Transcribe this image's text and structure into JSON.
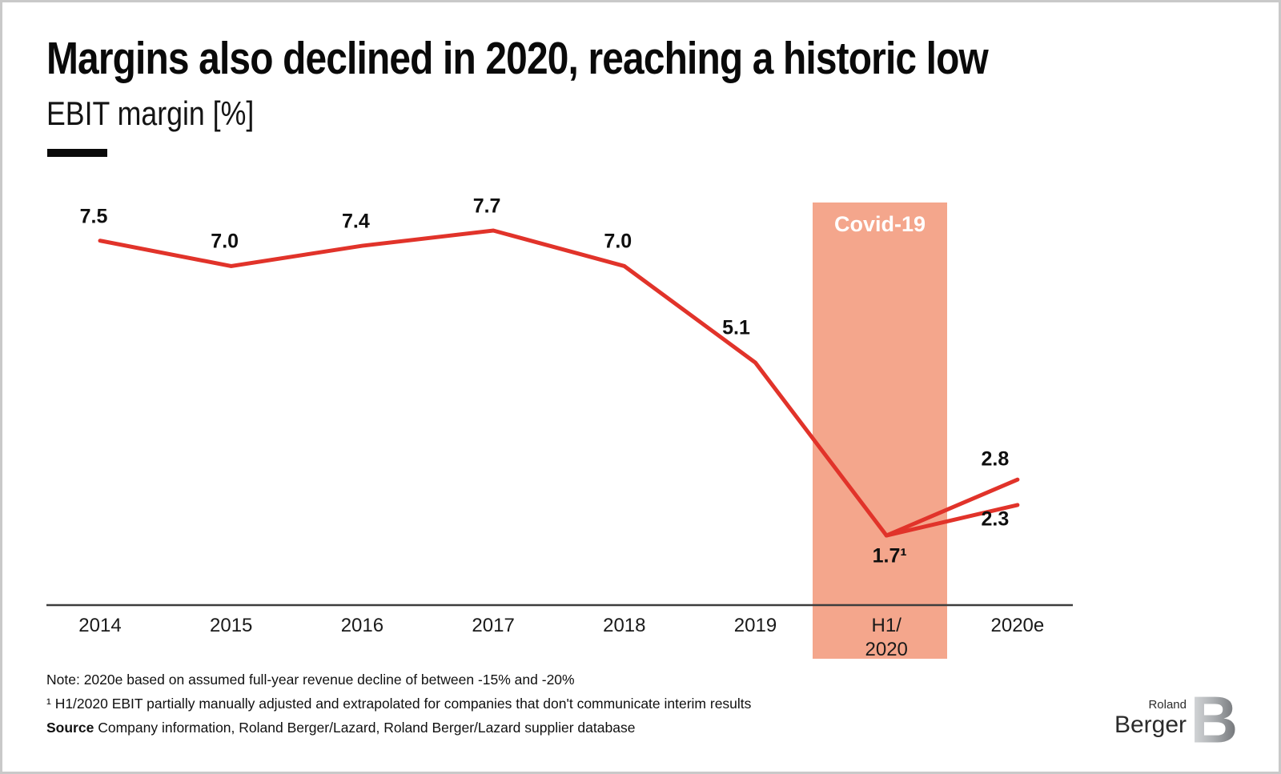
{
  "slide": {
    "title": "Margins also declined in 2020, reaching a historic low",
    "subtitle": "EBIT margin [%]"
  },
  "chart_data": {
    "type": "line",
    "title": "EBIT margin [%]",
    "xlabel": "",
    "ylabel": "EBIT margin [%]",
    "ylim": [
      0,
      9
    ],
    "grid": false,
    "legend": "none",
    "categories": [
      "2014",
      "2015",
      "2016",
      "2017",
      "2018",
      "2019",
      "H1/\n2020",
      "2020e"
    ],
    "series": [
      {
        "name": "EBIT margin",
        "x_indices": [
          0,
          1,
          2,
          3,
          4,
          5,
          6
        ],
        "values": [
          7.5,
          7.0,
          7.4,
          7.7,
          7.0,
          5.1,
          1.7
        ]
      },
      {
        "name": "2020e upper branch",
        "x_indices": [
          6,
          7
        ],
        "values": [
          1.7,
          2.8
        ]
      },
      {
        "name": "2020e lower branch",
        "x_indices": [
          6,
          7
        ],
        "values": [
          1.7,
          2.3
        ]
      }
    ],
    "data_labels": [
      {
        "text": "7.5",
        "x_index": 0,
        "value": 7.5,
        "placement": "above"
      },
      {
        "text": "7.0",
        "x_index": 1,
        "value": 7.0,
        "placement": "above"
      },
      {
        "text": "7.4",
        "x_index": 2,
        "value": 7.4,
        "placement": "above"
      },
      {
        "text": "7.7",
        "x_index": 3,
        "value": 7.7,
        "placement": "above"
      },
      {
        "text": "7.0",
        "x_index": 4,
        "value": 7.0,
        "placement": "above"
      },
      {
        "text": "5.1",
        "x_index": 5,
        "value": 5.1,
        "placement": "above-far"
      },
      {
        "text": "1.7¹",
        "x_index": 6,
        "value": 1.7,
        "placement": "below"
      },
      {
        "text": "2.8",
        "x_index": 7,
        "value": 2.8,
        "placement": "above-left"
      },
      {
        "text": "2.3",
        "x_index": 7,
        "value": 2.3,
        "placement": "below-left"
      }
    ],
    "covid_band": {
      "label": "Covid-19",
      "x_index": 6
    },
    "colors": {
      "line": "#e1332a",
      "band": "#f4a68c",
      "band_label": "#ffffff",
      "axis": "#3d3d3d"
    }
  },
  "footnotes": {
    "note": "Note: 2020e based on assumed full-year revenue decline of between -15% and -20%",
    "footnote1": "¹ H1/2020 EBIT partially manually adjusted and extrapolated for companies that don't communicate interim results",
    "source_label": "Source",
    "source_text": "Company information, Roland Berger/Lazard, Roland Berger/Lazard supplier database"
  },
  "logo": {
    "name_top": "Roland",
    "name_bottom": "Berger",
    "monogram": "B"
  }
}
